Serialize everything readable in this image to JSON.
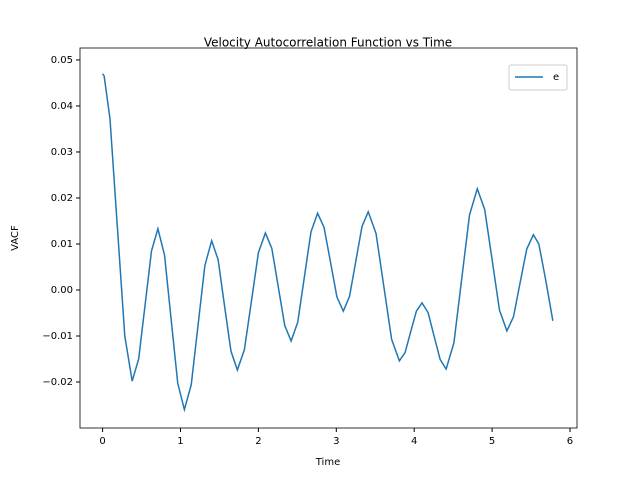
{
  "chart_data": {
    "type": "line",
    "title": "Velocity Autocorrelation Function vs Time",
    "xlabel": "Time",
    "ylabel": "VACF",
    "xlim": [
      -0.29,
      6.09
    ],
    "ylim": [
      -0.03,
      0.0526
    ],
    "xticks": [
      0,
      1,
      2,
      3,
      4,
      5,
      6
    ],
    "yticks": [
      {
        "value": -0.02,
        "label": "−0.02"
      },
      {
        "value": -0.01,
        "label": "−0.01"
      },
      {
        "value": 0,
        "label": "0.00"
      },
      0.01,
      0.02,
      0.03,
      0.04,
      0.05
    ],
    "legend": "upper right",
    "grid": false,
    "x": [
      0,
      0.02,
      0.095,
      0.19,
      0.285,
      0.38,
      0.463,
      0.545,
      0.628,
      0.71,
      0.795,
      0.88,
      0.965,
      1.05,
      1.138,
      1.225,
      1.313,
      1.4,
      1.483,
      1.565,
      1.648,
      1.73,
      1.82,
      1.91,
      2.0,
      2.09,
      2.173,
      2.255,
      2.338,
      2.42,
      2.505,
      2.59,
      2.675,
      2.76,
      2.843,
      2.925,
      3.008,
      3.09,
      3.17,
      3.25,
      3.33,
      3.41,
      3.51,
      3.61,
      3.71,
      3.81,
      3.883,
      3.955,
      4.028,
      4.1,
      4.178,
      4.255,
      4.333,
      4.41,
      4.51,
      4.61,
      4.71,
      4.81,
      4.905,
      5.0,
      5.095,
      5.19,
      5.275,
      5.36,
      5.445,
      5.53,
      5.6,
      5.69,
      5.78
    ],
    "series": [
      {
        "name": "e",
        "color": "#1f77b4",
        "values": [
          0.047,
          0.0465,
          0.0372,
          0.0136,
          -0.01,
          -0.0198,
          -0.015,
          -0.0033,
          0.0085,
          0.0133,
          0.0076,
          -0.0064,
          -0.0203,
          -0.026,
          -0.0206,
          -0.0077,
          0.0053,
          0.0107,
          0.0066,
          -0.0034,
          -0.0133,
          -0.0174,
          -0.013,
          -0.0025,
          0.0081,
          0.0124,
          0.009,
          0.0007,
          -0.0077,
          -0.0111,
          -0.007,
          0.0028,
          0.0126,
          0.0167,
          0.0136,
          0.0061,
          -0.0015,
          -0.0046,
          -0.0014,
          0.0062,
          0.0138,
          0.017,
          0.0123,
          0.0008,
          -0.0107,
          -0.0154,
          -0.0136,
          -0.0091,
          -0.0046,
          -0.0028,
          -0.0049,
          -0.01,
          -0.0151,
          -0.0172,
          -0.0115,
          0.0024,
          0.0163,
          0.022,
          0.0175,
          0.0066,
          -0.0044,
          -0.0089,
          -0.0058,
          0.0016,
          0.0089,
          0.012,
          0.01,
          0.002,
          -0.0067
        ]
      }
    ]
  }
}
